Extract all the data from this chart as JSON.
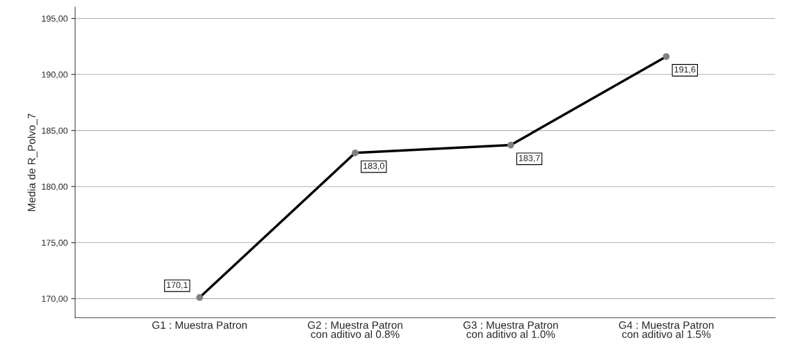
{
  "chart_data": {
    "type": "line",
    "ylabel": "Media de R_Polvo_7",
    "categories": [
      "G1 : Muestra Patron",
      "G2 : Muestra Patron\ncon aditivo al 0.8%",
      "G3 : Muestra Patron\ncon aditivo al 1.0%",
      "G4 : Muestra Patron\ncon aditivo al 1.5%"
    ],
    "series": [
      {
        "color": "#000000",
        "values": [
          170.1,
          183.0,
          183.7,
          191.6
        ],
        "value_labels": [
          "170,1",
          "183,0",
          "183,7",
          "191,6"
        ]
      }
    ],
    "ylim": [
      168.3,
      196.0
    ],
    "yticks": [
      {
        "value": 170,
        "label": "170,00"
      },
      {
        "value": 175,
        "label": "175,00"
      },
      {
        "value": 180,
        "label": "180,00"
      },
      {
        "value": 185,
        "label": "185,00"
      },
      {
        "value": 190,
        "label": "190,00"
      },
      {
        "value": 195,
        "label": "195,00"
      }
    ],
    "grid": "y",
    "marker": "circle",
    "line_style": "solid"
  }
}
